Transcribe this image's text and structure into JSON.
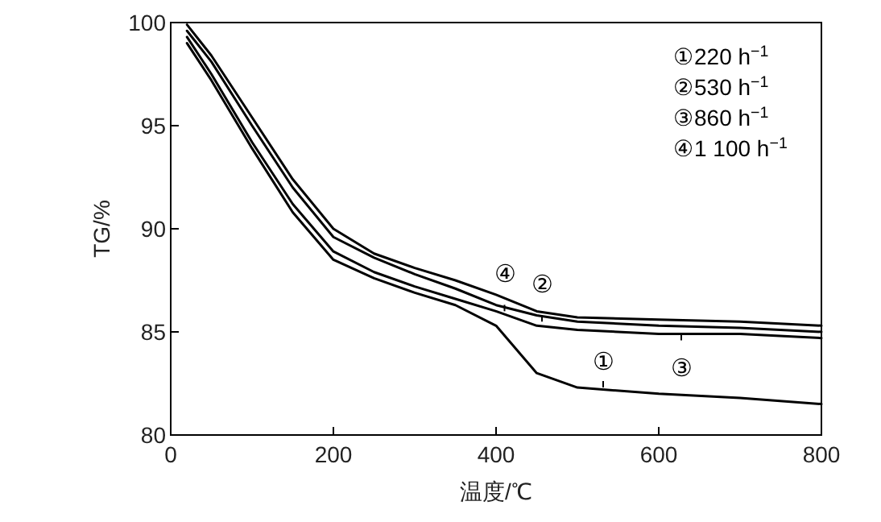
{
  "chart_data": {
    "type": "line",
    "xlabel": "温度/℃",
    "ylabel": "TG/%",
    "x": [
      20,
      50,
      100,
      150,
      200,
      250,
      300,
      350,
      400,
      450,
      500,
      600,
      700,
      800
    ],
    "series": [
      {
        "name": "①",
        "color": "#000000",
        "values": [
          99.0,
          97.2,
          93.9,
          90.8,
          88.5,
          87.6,
          86.9,
          86.3,
          85.3,
          83.0,
          82.3,
          82.0,
          81.8,
          81.5
        ]
      },
      {
        "name": "②",
        "color": "#000000",
        "values": [
          99.6,
          98.1,
          95.0,
          92.0,
          89.6,
          88.6,
          87.8,
          87.1,
          86.3,
          85.8,
          85.5,
          85.3,
          85.2,
          85.0
        ]
      },
      {
        "name": "③",
        "color": "#000000",
        "values": [
          99.3,
          97.5,
          94.2,
          91.2,
          88.9,
          87.9,
          87.2,
          86.6,
          86.0,
          85.3,
          85.1,
          84.9,
          84.9,
          84.7
        ]
      },
      {
        "name": "④",
        "color": "#000000",
        "values": [
          99.9,
          98.4,
          95.4,
          92.4,
          90.0,
          88.8,
          88.1,
          87.5,
          86.8,
          86.0,
          85.7,
          85.6,
          85.5,
          85.3
        ]
      }
    ],
    "annotations": [
      "①220 h$^{−1}$",
      "②530 h$^{−1}$",
      "③860 h$^{−1}$",
      "④1 100 h$^{−1}$"
    ],
    "xlim": [
      0,
      800
    ],
    "ylim": [
      80,
      100
    ],
    "xticks": [
      0,
      200,
      400,
      600,
      800
    ],
    "yticks": [
      80,
      85,
      90,
      95,
      100
    ],
    "grid": false,
    "marker": "none",
    "line_style": "solid"
  }
}
